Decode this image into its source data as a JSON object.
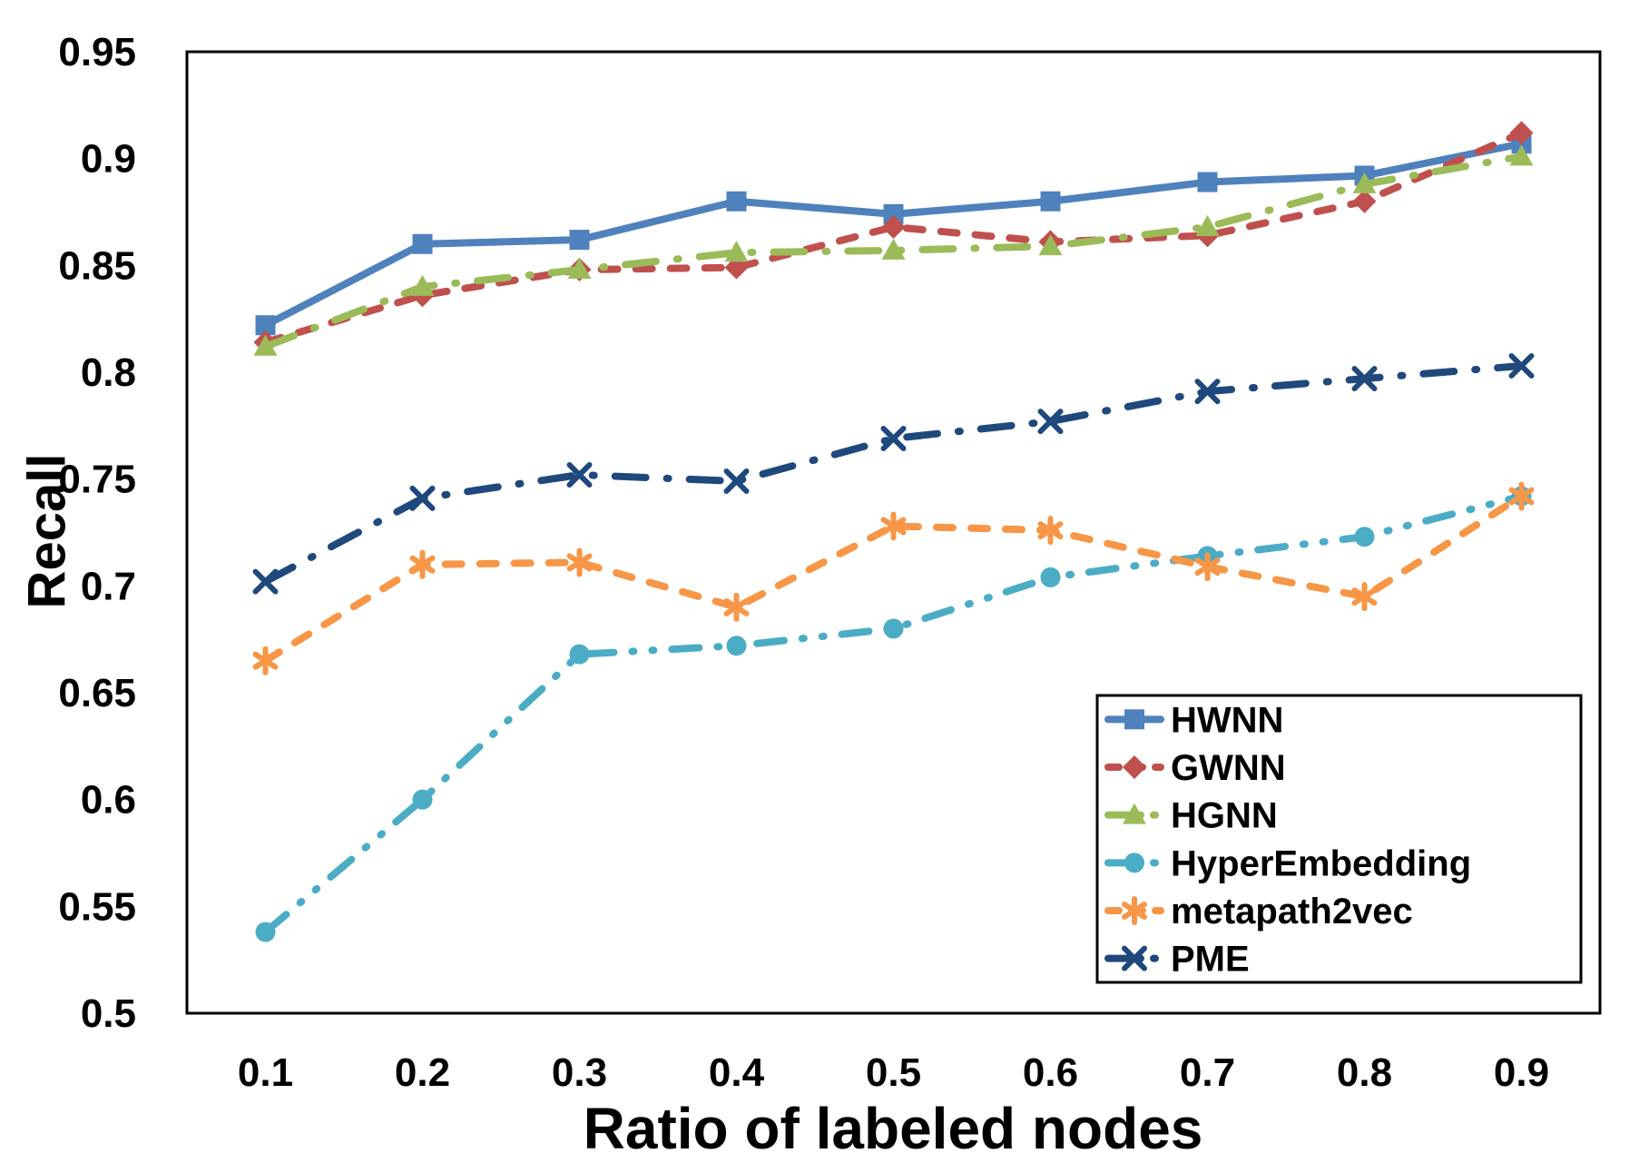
{
  "figure": {
    "background": "#ffffff",
    "axis_color": "#000000",
    "text_color": "#000000"
  },
  "chart_data": {
    "type": "line",
    "title": "",
    "xlabel": "Ratio of labeled nodes",
    "ylabel": "Recall",
    "categories": [
      0.1,
      0.2,
      0.3,
      0.4,
      0.5,
      0.6,
      0.7,
      0.8,
      0.9
    ],
    "x_tick_labels": [
      "0.1",
      "0.2",
      "0.3",
      "0.4",
      "0.5",
      "0.6",
      "0.7",
      "0.8",
      "0.9"
    ],
    "y_ticks": [
      0.5,
      0.55,
      0.6,
      0.65,
      0.7,
      0.75,
      0.8,
      0.85,
      0.9,
      0.95
    ],
    "y_tick_labels": [
      "0.5",
      "0.55",
      "0.6",
      "0.65",
      "0.7",
      "0.75",
      "0.8",
      "0.85",
      "0.9",
      "0.95"
    ],
    "ylim": [
      0.5,
      0.95
    ],
    "grid": false,
    "legend_position": "inside-lower-right",
    "series": [
      {
        "name": "HWNN",
        "color": "#4F81BD",
        "marker": "square",
        "line_style": "solid",
        "values": [
          0.822,
          0.86,
          0.862,
          0.88,
          0.874,
          0.88,
          0.889,
          0.892,
          0.907
        ]
      },
      {
        "name": "GWNN",
        "color": "#C0504D",
        "marker": "diamond",
        "line_style": "dash",
        "values": [
          0.814,
          0.836,
          0.848,
          0.849,
          0.868,
          0.861,
          0.864,
          0.88,
          0.912
        ]
      },
      {
        "name": "HGNN",
        "color": "#9BBB59",
        "marker": "triangle",
        "line_style": "long-dash-dot",
        "values": [
          0.812,
          0.84,
          0.848,
          0.856,
          0.857,
          0.859,
          0.868,
          0.888,
          0.901
        ]
      },
      {
        "name": "HyperEmbedding",
        "color": "#4BACC6",
        "marker": "circle",
        "line_style": "long-dash-dot-dot",
        "values": [
          0.538,
          0.6,
          0.668,
          0.672,
          0.68,
          0.704,
          0.714,
          0.723,
          0.742
        ]
      },
      {
        "name": "metapath2vec",
        "color": "#F79646",
        "marker": "asterisk",
        "line_style": "dash",
        "values": [
          0.665,
          0.71,
          0.711,
          0.69,
          0.728,
          0.726,
          0.709,
          0.695,
          0.742
        ]
      },
      {
        "name": "PME",
        "color": "#1F497D",
        "marker": "x",
        "line_style": "long-dash-dot",
        "values": [
          0.702,
          0.741,
          0.752,
          0.749,
          0.769,
          0.777,
          0.791,
          0.797,
          0.803
        ]
      }
    ]
  }
}
